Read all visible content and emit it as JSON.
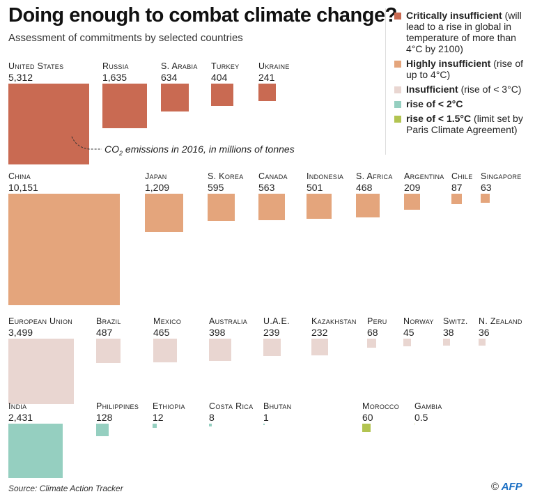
{
  "title": "Doing enough to combat climate change?",
  "subtitle": "Assessment of commitments by selected countries",
  "annotation": {
    "prefix": "CO",
    "sub": "2",
    "text": " emissions in 2016, in millions of tonnes"
  },
  "legend": [
    {
      "key": "critical",
      "bold": "Critically insufficient",
      "text": "(will lead to a rise in global in temperature of more than 4°C by 2100)",
      "color": "#c96a52"
    },
    {
      "key": "highly",
      "bold": "Highly insufficient",
      "text": "(rise of up to 4°C)",
      "color": "#e4a57c"
    },
    {
      "key": "insufficient",
      "bold": "Insufficient",
      "text": "(rise of < 3°C)",
      "color": "#e9d6d1"
    },
    {
      "key": "2c",
      "bold": "rise of < 2°C",
      "text": "",
      "color": "#95cfc0"
    },
    {
      "key": "1.5c",
      "bold": "rise of < 1.5°C",
      "text": "(limit set by Paris Climate Agreement)",
      "color": "#b2c451"
    }
  ],
  "chart_data": {
    "type": "proportional-area squares",
    "unit": "CO2 emissions in 2016, in millions of tonnes",
    "rows": [
      {
        "category": "critical",
        "countries": [
          {
            "name": "United States",
            "value": 5312,
            "label": "5,312"
          },
          {
            "name": "Russia",
            "value": 1635,
            "label": "1,635"
          },
          {
            "name": "S. Arabia",
            "value": 634,
            "label": "634"
          },
          {
            "name": "Turkey",
            "value": 404,
            "label": "404"
          },
          {
            "name": "Ukraine",
            "value": 241,
            "label": "241"
          }
        ]
      },
      {
        "category": "highly",
        "countries": [
          {
            "name": "China",
            "value": 10151,
            "label": "10,151"
          },
          {
            "name": "Japan",
            "value": 1209,
            "label": "1,209"
          },
          {
            "name": "S. Korea",
            "value": 595,
            "label": "595"
          },
          {
            "name": "Canada",
            "value": 563,
            "label": "563"
          },
          {
            "name": "Indonesia",
            "value": 501,
            "label": "501"
          },
          {
            "name": "S. Africa",
            "value": 468,
            "label": "468"
          },
          {
            "name": "Argentina",
            "value": 209,
            "label": "209"
          },
          {
            "name": "Chile",
            "value": 87,
            "label": "87"
          },
          {
            "name": "Singapore",
            "value": 63,
            "label": "63"
          }
        ]
      },
      {
        "category": "insufficient",
        "countries": [
          {
            "name": "European Union",
            "value": 3499,
            "label": "3,499"
          },
          {
            "name": "Brazil",
            "value": 487,
            "label": "487"
          },
          {
            "name": "Mexico",
            "value": 465,
            "label": "465"
          },
          {
            "name": "Australia",
            "value": 398,
            "label": "398"
          },
          {
            "name": "U.A.E.",
            "value": 239,
            "label": "239"
          },
          {
            "name": "Kazakhstan",
            "value": 232,
            "label": "232"
          },
          {
            "name": "Peru",
            "value": 68,
            "label": "68"
          },
          {
            "name": "Norway",
            "value": 45,
            "label": "45"
          },
          {
            "name": "Switz.",
            "value": 38,
            "label": "38"
          },
          {
            "name": "N. Zealand",
            "value": 36,
            "label": "36"
          }
        ]
      },
      {
        "category": "2c",
        "countries": [
          {
            "name": "India",
            "value": 2431,
            "label": "2,431"
          },
          {
            "name": "Philippines",
            "value": 128,
            "label": "128"
          },
          {
            "name": "Ethiopia",
            "value": 12,
            "label": "12"
          },
          {
            "name": "Costa Rica",
            "value": 8,
            "label": "8"
          },
          {
            "name": "Bhutan",
            "value": 1,
            "label": "1"
          },
          {
            "name": "Morocco",
            "value": 60,
            "label": "60",
            "category": "1.5c"
          },
          {
            "name": "Gambia",
            "value": 0.5,
            "label": "0.5",
            "category": "1.5c"
          }
        ]
      }
    ]
  },
  "footer": {
    "source": "Source: Climate Action Tracker",
    "copyright": "©",
    "logo": "AFP"
  }
}
